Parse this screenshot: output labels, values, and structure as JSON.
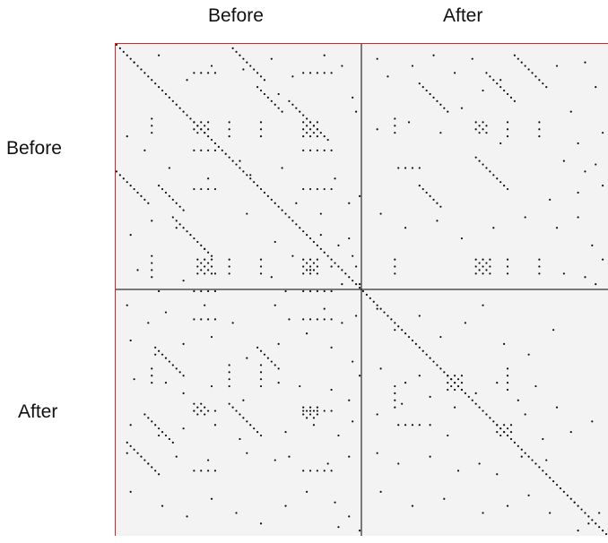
{
  "chart_data": {
    "type": "heatmap",
    "title": "",
    "xlabel": "",
    "ylabel": "",
    "column_labels": [
      "Before",
      "After"
    ],
    "row_labels": [
      "Before",
      "After"
    ],
    "size": 140,
    "split": 70,
    "grid": false,
    "colors": {
      "background": "#f3f3f3",
      "dot": "#111111",
      "divider": "#000000",
      "border": "#dd2222"
    },
    "diagonal": [
      {
        "name": "full-diagonal",
        "x0": 0,
        "y0": 0,
        "len": 140
      }
    ],
    "bands": [
      {
        "name": "band-top-left-1",
        "x0": 0,
        "y0": 36,
        "len": 10
      },
      {
        "name": "band-top-left-2",
        "x0": 12,
        "y0": 40,
        "len": 8
      },
      {
        "name": "band-top-left-3",
        "x0": 33,
        "y0": 1,
        "len": 10
      },
      {
        "name": "band-top-left-4",
        "x0": 40,
        "y0": 12,
        "len": 8
      },
      {
        "name": "band-top-left-5",
        "x0": 49,
        "y0": 16,
        "len": 12
      },
      {
        "name": "band-top-left-6",
        "x0": 16,
        "y0": 49,
        "len": 12
      },
      {
        "name": "band-top-right-1",
        "x0": 113,
        "y0": 3,
        "len": 10
      },
      {
        "name": "band-top-right-2",
        "x0": 105,
        "y0": 8,
        "len": 9
      },
      {
        "name": "band-top-right-3",
        "x0": 86,
        "y0": 11,
        "len": 9
      },
      {
        "name": "band-top-right-4",
        "x0": 102,
        "y0": 32,
        "len": 10
      },
      {
        "name": "band-top-right-5",
        "x0": 86,
        "y0": 40,
        "len": 7
      },
      {
        "name": "band-bottom-left-1",
        "x0": 3,
        "y0": 113,
        "len": 10
      },
      {
        "name": "band-bottom-left-2",
        "x0": 8,
        "y0": 105,
        "len": 9
      },
      {
        "name": "band-bottom-left-3",
        "x0": 11,
        "y0": 86,
        "len": 9
      },
      {
        "name": "band-bottom-left-4",
        "x0": 32,
        "y0": 102,
        "len": 10
      },
      {
        "name": "band-bottom-left-5",
        "x0": 40,
        "y0": 86,
        "len": 7
      }
    ],
    "clusters": [
      {
        "name": "cluster-tl-a",
        "x": 22,
        "y": 22,
        "w": 5,
        "h": 4
      },
      {
        "name": "cluster-tl-b",
        "x": 23,
        "y": 61,
        "w": 5,
        "h": 5
      },
      {
        "name": "cluster-tl-c",
        "x": 53,
        "y": 22,
        "w": 5,
        "h": 5
      },
      {
        "name": "cluster-tl-d",
        "x": 53,
        "y": 61,
        "w": 5,
        "h": 5
      },
      {
        "name": "cluster-tr-a",
        "x": 102,
        "y": 22,
        "w": 4,
        "h": 4
      },
      {
        "name": "cluster-tr-b",
        "x": 102,
        "y": 61,
        "w": 5,
        "h": 5
      },
      {
        "name": "cluster-bl-a",
        "x": 22,
        "y": 102,
        "w": 4,
        "h": 4
      },
      {
        "name": "cluster-bl-b",
        "x": 53,
        "y": 103,
        "w": 5,
        "h": 4
      },
      {
        "name": "cluster-br-a",
        "x": 94,
        "y": 94,
        "w": 5,
        "h": 5
      },
      {
        "name": "cluster-br-b",
        "x": 108,
        "y": 108,
        "w": 5,
        "h": 4
      }
    ],
    "columns": [
      {
        "name": "col-tl-1",
        "x": 10,
        "y": 21,
        "len": 6
      },
      {
        "name": "col-tl-2",
        "x": 10,
        "y": 60,
        "len": 7
      },
      {
        "name": "col-tl-3",
        "x": 32,
        "y": 22,
        "len": 5
      },
      {
        "name": "col-tl-4",
        "x": 32,
        "y": 61,
        "len": 6
      },
      {
        "name": "col-tl-5",
        "x": 41,
        "y": 22,
        "len": 5
      },
      {
        "name": "col-tl-6",
        "x": 41,
        "y": 61,
        "len": 6
      },
      {
        "name": "col-tr-1",
        "x": 79,
        "y": 21,
        "len": 6
      },
      {
        "name": "col-tr-2",
        "x": 79,
        "y": 61,
        "len": 6
      },
      {
        "name": "col-tr-3",
        "x": 111,
        "y": 22,
        "len": 5
      },
      {
        "name": "col-tr-4",
        "x": 111,
        "y": 61,
        "len": 6
      },
      {
        "name": "col-tr-5",
        "x": 120,
        "y": 22,
        "len": 5
      },
      {
        "name": "col-tr-6",
        "x": 120,
        "y": 61,
        "len": 6
      },
      {
        "name": "col-bl-1",
        "x": 10,
        "y": 92,
        "len": 6
      },
      {
        "name": "col-bl-2",
        "x": 32,
        "y": 91,
        "len": 7
      },
      {
        "name": "col-bl-3",
        "x": 41,
        "y": 91,
        "len": 7
      },
      {
        "name": "col-br-1",
        "x": 79,
        "y": 97,
        "len": 8
      },
      {
        "name": "col-br-2",
        "x": 111,
        "y": 92,
        "len": 7
      }
    ],
    "rows": [
      {
        "name": "row-1",
        "x": 22,
        "y": 8,
        "len": 4
      },
      {
        "name": "row-2",
        "x": 53,
        "y": 8,
        "len": 5
      },
      {
        "name": "row-3",
        "x": 22,
        "y": 30,
        "len": 4
      },
      {
        "name": "row-4",
        "x": 53,
        "y": 30,
        "len": 5
      },
      {
        "name": "row-5",
        "x": 22,
        "y": 41,
        "len": 4
      },
      {
        "name": "row-6",
        "x": 53,
        "y": 41,
        "len": 5
      },
      {
        "name": "row-7",
        "x": 22,
        "y": 70,
        "len": 4
      },
      {
        "name": "row-8",
        "x": 53,
        "y": 70,
        "len": 5
      },
      {
        "name": "row-9",
        "x": 80,
        "y": 35,
        "len": 4
      },
      {
        "name": "row-10",
        "x": 80,
        "y": 108,
        "len": 4
      },
      {
        "name": "row-11",
        "x": 22,
        "y": 78,
        "len": 4
      },
      {
        "name": "row-12",
        "x": 53,
        "y": 78,
        "len": 5
      },
      {
        "name": "row-13",
        "x": 22,
        "y": 104,
        "len": 4
      },
      {
        "name": "row-14",
        "x": 53,
        "y": 104,
        "len": 5
      },
      {
        "name": "row-15",
        "x": 22,
        "y": 121,
        "len": 4
      },
      {
        "name": "row-16",
        "x": 53,
        "y": 121,
        "len": 5
      }
    ],
    "scatter": [
      [
        5,
        5
      ],
      [
        12,
        3
      ],
      [
        20,
        10
      ],
      [
        27,
        6
      ],
      [
        36,
        7
      ],
      [
        44,
        4
      ],
      [
        46,
        14
      ],
      [
        50,
        9
      ],
      [
        59,
        3
      ],
      [
        64,
        6
      ],
      [
        67,
        15
      ],
      [
        68,
        19
      ],
      [
        3,
        26
      ],
      [
        8,
        30
      ],
      [
        15,
        35
      ],
      [
        26,
        38
      ],
      [
        35,
        33
      ],
      [
        38,
        37
      ],
      [
        47,
        35
      ],
      [
        51,
        45
      ],
      [
        58,
        48
      ],
      [
        62,
        38
      ],
      [
        66,
        45
      ],
      [
        69,
        43
      ],
      [
        4,
        54
      ],
      [
        10,
        50
      ],
      [
        17,
        52
      ],
      [
        25,
        58
      ],
      [
        37,
        48
      ],
      [
        45,
        56
      ],
      [
        50,
        60
      ],
      [
        58,
        54
      ],
      [
        63,
        57
      ],
      [
        67,
        60
      ],
      [
        68,
        63
      ],
      [
        6,
        64
      ],
      [
        12,
        70
      ],
      [
        19,
        67
      ],
      [
        28,
        65
      ],
      [
        44,
        66
      ],
      [
        48,
        70
      ],
      [
        55,
        64
      ],
      [
        61,
        63
      ],
      [
        64,
        68
      ],
      [
        69,
        68
      ],
      [
        66,
        55
      ],
      [
        74,
        4
      ],
      [
        77,
        9
      ],
      [
        84,
        6
      ],
      [
        90,
        3
      ],
      [
        96,
        8
      ],
      [
        101,
        4
      ],
      [
        104,
        13
      ],
      [
        109,
        10
      ],
      [
        125,
        6
      ],
      [
        133,
        5
      ],
      [
        136,
        12
      ],
      [
        129,
        19
      ],
      [
        131,
        28
      ],
      [
        138,
        25
      ],
      [
        74,
        24
      ],
      [
        83,
        22
      ],
      [
        92,
        25
      ],
      [
        98,
        18
      ],
      [
        109,
        28
      ],
      [
        127,
        33
      ],
      [
        133,
        36
      ],
      [
        136,
        34
      ],
      [
        123,
        44
      ],
      [
        131,
        42
      ],
      [
        138,
        40
      ],
      [
        75,
        48
      ],
      [
        82,
        52
      ],
      [
        91,
        50
      ],
      [
        98,
        55
      ],
      [
        107,
        52
      ],
      [
        116,
        49
      ],
      [
        125,
        52
      ],
      [
        131,
        49
      ],
      [
        135,
        57
      ],
      [
        138,
        61
      ],
      [
        127,
        65
      ],
      [
        133,
        66
      ],
      [
        136,
        68
      ],
      [
        3,
        74
      ],
      [
        9,
        79
      ],
      [
        14,
        76
      ],
      [
        25,
        74
      ],
      [
        33,
        79
      ],
      [
        45,
        74
      ],
      [
        49,
        78
      ],
      [
        59,
        75
      ],
      [
        64,
        79
      ],
      [
        68,
        77
      ],
      [
        4,
        84
      ],
      [
        11,
        88
      ],
      [
        19,
        85
      ],
      [
        27,
        83
      ],
      [
        37,
        89
      ],
      [
        46,
        85
      ],
      [
        54,
        82
      ],
      [
        61,
        86
      ],
      [
        67,
        90
      ],
      [
        5,
        95
      ],
      [
        14,
        96
      ],
      [
        19,
        99
      ],
      [
        27,
        97
      ],
      [
        36,
        101
      ],
      [
        46,
        96
      ],
      [
        52,
        97
      ],
      [
        61,
        98
      ],
      [
        66,
        101
      ],
      [
        69,
        94
      ],
      [
        4,
        108
      ],
      [
        12,
        111
      ],
      [
        19,
        109
      ],
      [
        28,
        108
      ],
      [
        35,
        112
      ],
      [
        48,
        110
      ],
      [
        56,
        108
      ],
      [
        63,
        111
      ],
      [
        67,
        107
      ],
      [
        3,
        116
      ],
      [
        9,
        119
      ],
      [
        17,
        117
      ],
      [
        26,
        118
      ],
      [
        37,
        116
      ],
      [
        45,
        118
      ],
      [
        49,
        117
      ],
      [
        60,
        119
      ],
      [
        66,
        117
      ],
      [
        4,
        127
      ],
      [
        13,
        131
      ],
      [
        20,
        134
      ],
      [
        27,
        129
      ],
      [
        34,
        133
      ],
      [
        41,
        136
      ],
      [
        48,
        131
      ],
      [
        54,
        127
      ],
      [
        62,
        130
      ],
      [
        66,
        134
      ],
      [
        69,
        138
      ],
      [
        63,
        137
      ],
      [
        74,
        75
      ],
      [
        79,
        81
      ],
      [
        86,
        77
      ],
      [
        92,
        83
      ],
      [
        99,
        79
      ],
      [
        104,
        74
      ],
      [
        110,
        85
      ],
      [
        117,
        88
      ],
      [
        124,
        81
      ],
      [
        75,
        92
      ],
      [
        82,
        96
      ],
      [
        86,
        94
      ],
      [
        89,
        100
      ],
      [
        96,
        103
      ],
      [
        102,
        99
      ],
      [
        108,
        96
      ],
      [
        114,
        101
      ],
      [
        119,
        97
      ],
      [
        125,
        103
      ],
      [
        74,
        105
      ],
      [
        81,
        102
      ],
      [
        89,
        108
      ],
      [
        94,
        111
      ],
      [
        116,
        105
      ],
      [
        121,
        112
      ],
      [
        129,
        110
      ],
      [
        135,
        107
      ],
      [
        74,
        116
      ],
      [
        80,
        119
      ],
      [
        89,
        117
      ],
      [
        97,
        121
      ],
      [
        103,
        119
      ],
      [
        108,
        122
      ],
      [
        115,
        117
      ],
      [
        122,
        118
      ],
      [
        75,
        127
      ],
      [
        84,
        131
      ],
      [
        93,
        129
      ],
      [
        104,
        133
      ],
      [
        111,
        131
      ],
      [
        117,
        128
      ],
      [
        123,
        133
      ],
      [
        130,
        130
      ],
      [
        134,
        136
      ],
      [
        137,
        133
      ],
      [
        131,
        138
      ]
    ]
  }
}
